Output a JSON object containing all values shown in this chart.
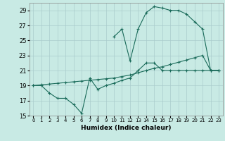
{
  "xlabel": "Humidex (Indice chaleur)",
  "bg_color": "#c8eae4",
  "grid_color": "#aacccc",
  "line_color": "#1a6b5a",
  "xlim": [
    -0.5,
    23.5
  ],
  "ylim": [
    15,
    30
  ],
  "xticks": [
    0,
    1,
    2,
    3,
    4,
    5,
    6,
    7,
    8,
    9,
    10,
    11,
    12,
    13,
    14,
    15,
    16,
    17,
    18,
    19,
    20,
    21,
    22,
    23
  ],
  "yticks": [
    15,
    17,
    19,
    21,
    23,
    25,
    27,
    29
  ],
  "series1_x": [
    0,
    1,
    2,
    3,
    4,
    5,
    6,
    7,
    8,
    9,
    10,
    11,
    12,
    13,
    14,
    15,
    16,
    17,
    18,
    19,
    20,
    21,
    22,
    23
  ],
  "series1_y": [
    19,
    19,
    18,
    17.3,
    17.3,
    16.5,
    15.3,
    20,
    18.5,
    19,
    19.3,
    19.7,
    20,
    21,
    22,
    22,
    21,
    21,
    21,
    21,
    21,
    21,
    21,
    21
  ],
  "series2_x": [
    0,
    1,
    2,
    3,
    4,
    5,
    6,
    7,
    8,
    9,
    10,
    11,
    12,
    13,
    14,
    15,
    16,
    17,
    18,
    19,
    20,
    21,
    22,
    23
  ],
  "series2_y": [
    19,
    19.1,
    19.2,
    19.3,
    19.4,
    19.5,
    19.6,
    19.7,
    19.8,
    19.9,
    20.0,
    20.2,
    20.4,
    20.7,
    21.0,
    21.3,
    21.5,
    21.8,
    22.1,
    22.4,
    22.7,
    23.0,
    21,
    21
  ],
  "series3_x": [
    10,
    11,
    12,
    13,
    14,
    15,
    16,
    17,
    18,
    19,
    20,
    21,
    22,
    23
  ],
  "series3_y": [
    25.5,
    26.5,
    22.3,
    26.5,
    28.7,
    29.5,
    29.3,
    29.0,
    29.0,
    28.5,
    27.5,
    26.5,
    21,
    21
  ]
}
